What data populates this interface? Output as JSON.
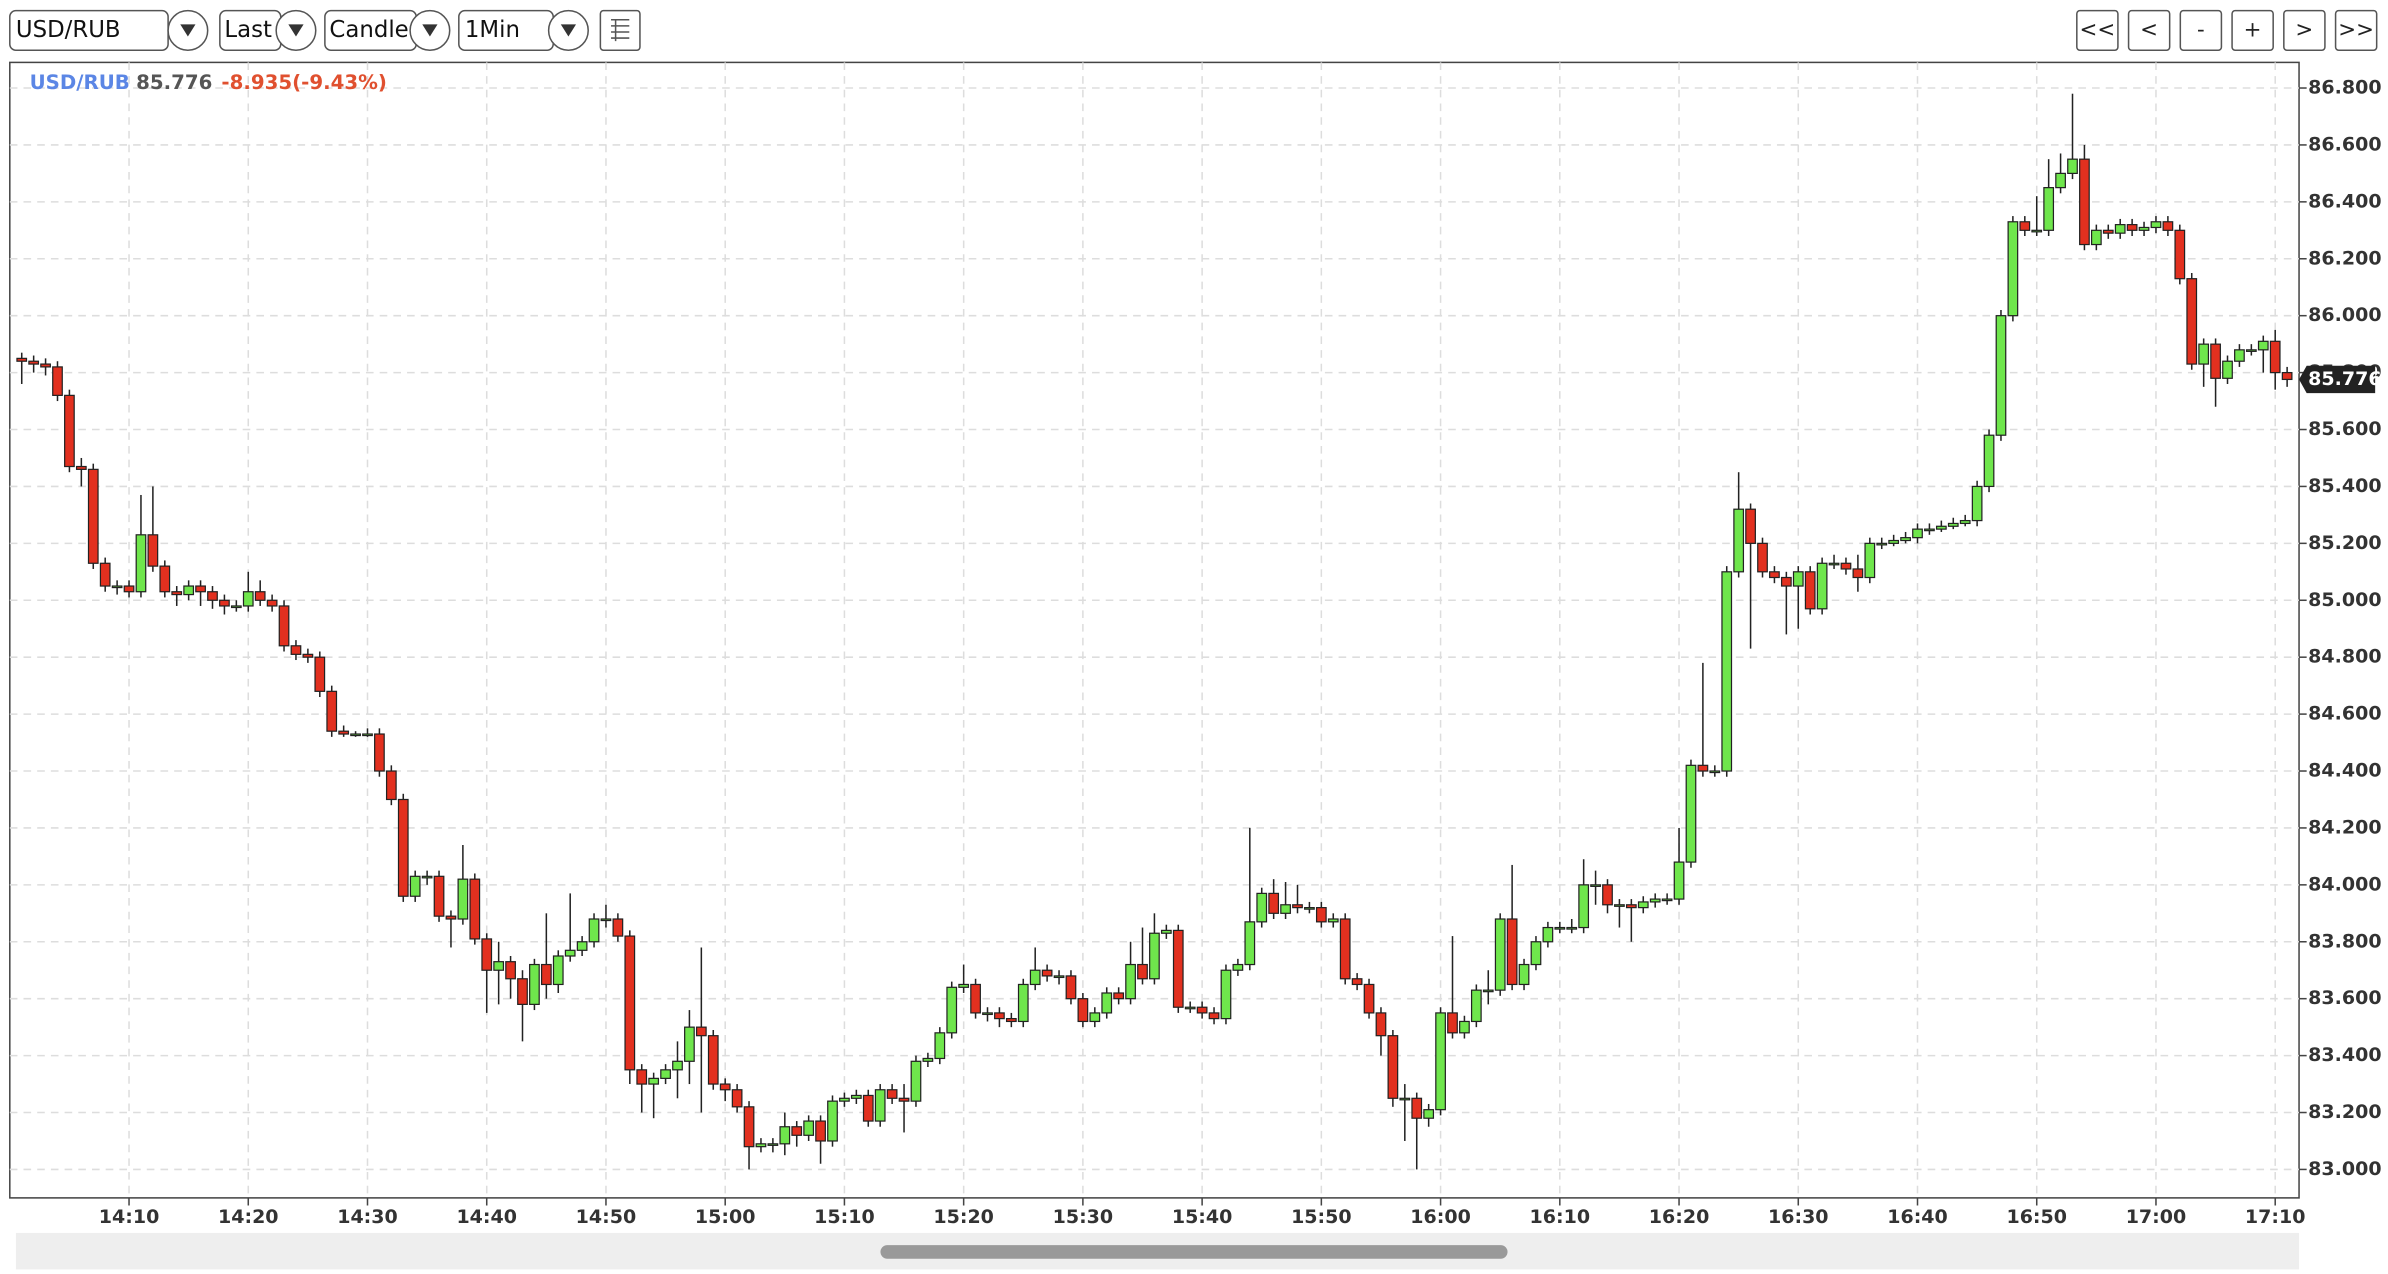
{
  "toolbar": {
    "symbol": "USD/RUB",
    "price_type": "Last",
    "chart_type": "Candle",
    "interval": "1Min",
    "nav": [
      "<<",
      "<",
      "-",
      "+",
      ">",
      ">>"
    ]
  },
  "chart_data": {
    "type": "candlestick",
    "header_change": "-8.935(-9.43%)",
    "up_color": "#6fe64c",
    "down_color": "#e2301f",
    "grid": true,
    "xlim": [
      "14:00",
      "17:12"
    ],
    "ylim": [
      82.9,
      86.89
    ],
    "xticks": [
      "14:10",
      "14:20",
      "14:30",
      "14:40",
      "14:50",
      "15:00",
      "15:10",
      "15:20",
      "15:30",
      "15:40",
      "15:50",
      "16:00",
      "16:10",
      "16:20",
      "16:30",
      "16:40",
      "16:50",
      "17:00",
      "17:10"
    ],
    "yticks": [
      {
        "value": 83,
        "label": "83.000"
      },
      {
        "value": 83.2,
        "label": "83.200"
      },
      {
        "value": 83.4,
        "label": "83.400"
      },
      {
        "value": 83.6,
        "label": "83.600"
      },
      {
        "value": 83.8,
        "label": "83.800"
      },
      {
        "value": 84,
        "label": "84.000"
      },
      {
        "value": 84.2,
        "label": "84.200"
      },
      {
        "value": 84.4,
        "label": "84.400"
      },
      {
        "value": 84.6,
        "label": "84.600"
      },
      {
        "value": 84.8,
        "label": "84.800"
      },
      {
        "value": 85,
        "label": "85.000"
      },
      {
        "value": 85.2,
        "label": "85.200"
      },
      {
        "value": 85.4,
        "label": "85.400"
      },
      {
        "value": 85.6,
        "label": "85.600"
      },
      {
        "value": 85.8,
        "label": "85.800"
      },
      {
        "value": 86,
        "label": "86.000"
      },
      {
        "value": 86.2,
        "label": "86.200"
      },
      {
        "value": 86.4,
        "label": "86.400"
      },
      {
        "value": 86.6,
        "label": "86.600"
      },
      {
        "value": 86.8,
        "label": "86.800"
      }
    ],
    "x": [
      "14:01",
      "14:02",
      "14:03",
      "14:04",
      "14:05",
      "14:06",
      "14:07",
      "14:08",
      "14:09",
      "14:10",
      "14:11",
      "14:12",
      "14:13",
      "14:14",
      "14:15",
      "14:16",
      "14:17",
      "14:18",
      "14:19",
      "14:20",
      "14:21",
      "14:22",
      "14:23",
      "14:24",
      "14:25",
      "14:26",
      "14:27",
      "14:28",
      "14:29",
      "14:30",
      "14:31",
      "14:32",
      "14:33",
      "14:34",
      "14:35",
      "14:36",
      "14:37",
      "14:38",
      "14:39",
      "14:40",
      "14:41",
      "14:42",
      "14:43",
      "14:44",
      "14:45",
      "14:46",
      "14:47",
      "14:48",
      "14:49",
      "14:50",
      "14:51",
      "14:52",
      "14:53",
      "14:54",
      "14:55",
      "14:56",
      "14:57",
      "14:58",
      "14:59",
      "15:00",
      "15:01",
      "15:02",
      "15:03",
      "15:04",
      "15:05",
      "15:06",
      "15:07",
      "15:08",
      "15:09",
      "15:10",
      "15:11",
      "15:12",
      "15:13",
      "15:14",
      "15:15",
      "15:16",
      "15:17",
      "15:18",
      "15:19",
      "15:20",
      "15:21",
      "15:22",
      "15:23",
      "15:24",
      "15:25",
      "15:26",
      "15:27",
      "15:28",
      "15:29",
      "15:30",
      "15:31",
      "15:32",
      "15:33",
      "15:34",
      "15:35",
      "15:36",
      "15:37",
      "15:38",
      "15:39",
      "15:40",
      "15:41",
      "15:42",
      "15:43",
      "15:44",
      "15:45",
      "15:46",
      "15:47",
      "15:48",
      "15:49",
      "15:50",
      "15:51",
      "15:52",
      "15:53",
      "15:54",
      "15:55",
      "15:56",
      "15:57",
      "15:58",
      "15:59",
      "16:00",
      "16:01",
      "16:02",
      "16:03",
      "16:04",
      "16:05",
      "16:06",
      "16:07",
      "16:08",
      "16:09",
      "16:10",
      "16:11",
      "16:12",
      "16:13",
      "16:14",
      "16:15",
      "16:16",
      "16:17",
      "16:18",
      "16:19",
      "16:20",
      "16:21",
      "16:22",
      "16:23",
      "16:24",
      "16:25",
      "16:26",
      "16:27",
      "16:28",
      "16:29",
      "16:30",
      "16:31",
      "16:32",
      "16:33",
      "16:34",
      "16:35",
      "16:36",
      "16:37",
      "16:38",
      "16:39",
      "16:40",
      "16:41",
      "16:42",
      "16:43",
      "16:44",
      "16:45",
      "16:46",
      "16:47",
      "16:48",
      "16:49",
      "16:50",
      "16:51",
      "16:52",
      "16:53",
      "16:54",
      "16:55",
      "16:56",
      "16:57",
      "16:58",
      "16:59",
      "17:00",
      "17:01",
      "17:02",
      "17:03",
      "17:04",
      "17:05",
      "17:06",
      "17:07",
      "17:08",
      "17:09",
      "17:10",
      "17:11"
    ],
    "open": [
      85.85,
      85.84,
      85.83,
      85.82,
      85.72,
      85.47,
      85.46,
      85.13,
      85.05,
      85.05,
      85.03,
      85.23,
      85.12,
      85.03,
      85.02,
      85.05,
      85.03,
      85.0,
      84.98,
      84.98,
      85.03,
      85.0,
      84.98,
      84.84,
      84.81,
      84.8,
      84.68,
      84.54,
      84.53,
      84.53,
      84.53,
      84.4,
      84.3,
      83.96,
      84.03,
      84.03,
      83.89,
      83.88,
      84.02,
      83.81,
      83.7,
      83.73,
      83.67,
      83.58,
      83.72,
      83.65,
      83.75,
      83.77,
      83.8,
      83.88,
      83.88,
      83.82,
      83.35,
      83.3,
      83.32,
      83.35,
      83.38,
      83.5,
      83.47,
      83.3,
      83.28,
      83.22,
      83.08,
      83.09,
      83.09,
      83.15,
      83.12,
      83.17,
      83.1,
      83.24,
      83.25,
      83.26,
      83.17,
      83.28,
      83.25,
      83.24,
      83.38,
      83.39,
      83.48,
      83.64,
      83.65,
      83.55,
      83.55,
      83.53,
      83.52,
      83.65,
      83.7,
      83.68,
      83.68,
      83.6,
      83.52,
      83.55,
      83.62,
      83.6,
      83.72,
      83.67,
      83.83,
      83.84,
      83.57,
      83.57,
      83.55,
      83.53,
      83.7,
      83.72,
      83.87,
      83.97,
      83.9,
      83.93,
      83.92,
      83.92,
      83.87,
      83.88,
      83.67,
      83.65,
      83.55,
      83.47,
      83.25,
      83.25,
      83.18,
      83.21,
      83.55,
      83.48,
      83.52,
      83.63,
      83.63,
      83.88,
      83.65,
      83.72,
      83.8,
      83.85,
      83.85,
      83.85,
      84.0,
      84.0,
      83.93,
      83.93,
      83.92,
      83.94,
      83.95,
      83.95,
      84.08,
      84.42,
      84.4,
      84.4,
      85.1,
      85.32,
      85.2,
      85.1,
      85.08,
      85.05,
      85.1,
      84.97,
      85.13,
      85.13,
      85.11,
      85.08,
      85.2,
      85.2,
      85.21,
      85.22,
      85.25,
      85.25,
      85.26,
      85.27,
      85.28,
      85.4,
      85.58,
      86.0,
      86.33,
      86.3,
      86.3,
      86.45,
      86.5,
      86.55,
      86.25,
      86.3,
      86.29,
      86.32,
      86.3,
      86.31,
      86.33,
      86.3,
      86.13,
      85.83,
      85.9,
      85.78,
      85.84,
      85.88,
      85.88,
      85.91,
      85.8
    ],
    "high": [
      85.87,
      85.86,
      85.85,
      85.84,
      85.74,
      85.5,
      85.48,
      85.15,
      85.07,
      85.07,
      85.37,
      85.4,
      85.14,
      85.05,
      85.07,
      85.07,
      85.05,
      85.02,
      85.0,
      85.1,
      85.07,
      85.02,
      85.0,
      84.86,
      84.83,
      84.82,
      84.7,
      84.56,
      84.54,
      84.55,
      84.55,
      84.42,
      84.32,
      84.05,
      84.05,
      84.05,
      83.91,
      84.14,
      84.04,
      83.83,
      83.8,
      83.75,
      83.7,
      83.74,
      83.9,
      83.77,
      83.97,
      83.82,
      83.9,
      83.93,
      83.9,
      83.84,
      83.37,
      83.34,
      83.37,
      83.45,
      83.56,
      83.78,
      83.49,
      83.32,
      83.3,
      83.24,
      83.11,
      83.11,
      83.2,
      83.17,
      83.19,
      83.19,
      83.26,
      83.27,
      83.28,
      83.28,
      83.3,
      83.3,
      83.3,
      83.4,
      83.41,
      83.5,
      83.66,
      83.72,
      83.67,
      83.57,
      83.57,
      83.55,
      83.67,
      83.78,
      83.72,
      83.7,
      83.7,
      83.62,
      83.57,
      83.64,
      83.64,
      83.8,
      83.85,
      83.9,
      83.86,
      83.86,
      83.59,
      83.59,
      83.57,
      83.72,
      83.74,
      84.2,
      83.99,
      84.02,
      84.01,
      84.0,
      83.94,
      83.94,
      83.9,
      83.9,
      83.69,
      83.67,
      83.57,
      83.49,
      83.3,
      83.27,
      83.23,
      83.57,
      83.82,
      83.54,
      83.65,
      83.7,
      83.9,
      84.07,
      83.74,
      83.82,
      83.87,
      83.87,
      83.88,
      84.09,
      84.05,
      84.02,
      83.95,
      83.95,
      83.96,
      83.97,
      83.97,
      84.2,
      84.44,
      84.78,
      84.42,
      85.12,
      85.45,
      85.34,
      85.22,
      85.12,
      85.1,
      85.12,
      85.12,
      85.15,
      85.16,
      85.15,
      85.16,
      85.22,
      85.22,
      85.23,
      85.24,
      85.27,
      85.27,
      85.28,
      85.29,
      85.3,
      85.42,
      85.6,
      86.02,
      86.35,
      86.35,
      86.42,
      86.55,
      86.57,
      86.78,
      86.6,
      86.32,
      86.32,
      86.34,
      86.34,
      86.33,
      86.35,
      86.35,
      86.32,
      86.15,
      85.92,
      85.92,
      85.86,
      85.9,
      85.9,
      85.93,
      85.95,
      85.82
    ],
    "low": [
      85.76,
      85.8,
      85.79,
      85.7,
      85.45,
      85.4,
      85.11,
      85.03,
      85.02,
      85.01,
      85.01,
      85.1,
      85.01,
      84.98,
      85.0,
      84.98,
      84.97,
      84.95,
      84.96,
      84.96,
      84.98,
      84.96,
      84.82,
      84.79,
      84.78,
      84.66,
      84.52,
      84.52,
      84.52,
      84.52,
      84.38,
      84.28,
      83.94,
      83.94,
      84.0,
      83.87,
      83.78,
      83.86,
      83.79,
      83.55,
      83.58,
      83.6,
      83.45,
      83.56,
      83.6,
      83.62,
      83.73,
      83.75,
      83.78,
      83.85,
      83.8,
      83.3,
      83.2,
      83.18,
      83.3,
      83.25,
      83.3,
      83.2,
      83.28,
      83.24,
      83.2,
      83.0,
      83.06,
      83.06,
      83.05,
      83.08,
      83.1,
      83.02,
      83.08,
      83.22,
      83.23,
      83.15,
      83.15,
      83.23,
      83.13,
      83.22,
      83.36,
      83.37,
      83.46,
      83.62,
      83.53,
      83.52,
      83.5,
      83.5,
      83.5,
      83.63,
      83.66,
      83.65,
      83.58,
      83.5,
      83.5,
      83.53,
      83.58,
      83.58,
      83.65,
      83.65,
      83.81,
      83.55,
      83.55,
      83.53,
      83.51,
      83.51,
      83.68,
      83.7,
      83.85,
      83.88,
      83.88,
      83.9,
      83.9,
      83.85,
      83.85,
      83.65,
      83.63,
      83.53,
      83.4,
      83.22,
      83.1,
      83.0,
      83.15,
      83.19,
      83.46,
      83.46,
      83.5,
      83.58,
      83.61,
      83.63,
      83.63,
      83.7,
      83.78,
      83.83,
      83.83,
      83.83,
      83.93,
      83.9,
      83.85,
      83.8,
      83.9,
      83.92,
      83.93,
      83.93,
      84.06,
      84.38,
      84.38,
      84.38,
      85.08,
      84.83,
      85.08,
      85.06,
      84.88,
      84.9,
      84.95,
      84.95,
      85.11,
      85.09,
      85.03,
      85.06,
      85.18,
      85.19,
      85.2,
      85.2,
      85.23,
      85.24,
      85.25,
      85.26,
      85.26,
      85.38,
      85.56,
      85.98,
      86.28,
      86.28,
      86.28,
      86.43,
      86.48,
      86.23,
      86.23,
      86.27,
      86.27,
      86.28,
      86.28,
      86.29,
      86.28,
      86.11,
      85.81,
      85.75,
      85.68,
      85.76,
      85.82,
      85.86,
      85.8,
      85.74,
      85.75
    ],
    "close": [
      85.84,
      85.83,
      85.82,
      85.72,
      85.47,
      85.46,
      85.13,
      85.05,
      85.05,
      85.03,
      85.23,
      85.12,
      85.03,
      85.02,
      85.05,
      85.03,
      85.0,
      84.98,
      84.98,
      85.03,
      85.0,
      84.98,
      84.84,
      84.81,
      84.8,
      84.68,
      84.54,
      84.53,
      84.53,
      84.53,
      84.4,
      84.3,
      83.96,
      84.03,
      84.03,
      83.89,
      83.88,
      84.02,
      83.81,
      83.7,
      83.73,
      83.67,
      83.58,
      83.72,
      83.65,
      83.75,
      83.77,
      83.8,
      83.88,
      83.88,
      83.82,
      83.35,
      83.3,
      83.32,
      83.35,
      83.38,
      83.5,
      83.47,
      83.3,
      83.28,
      83.22,
      83.08,
      83.09,
      83.09,
      83.15,
      83.12,
      83.17,
      83.1,
      83.24,
      83.25,
      83.26,
      83.17,
      83.28,
      83.25,
      83.24,
      83.38,
      83.39,
      83.48,
      83.64,
      83.65,
      83.55,
      83.55,
      83.53,
      83.52,
      83.65,
      83.7,
      83.68,
      83.68,
      83.6,
      83.52,
      83.55,
      83.62,
      83.6,
      83.72,
      83.67,
      83.83,
      83.84,
      83.57,
      83.57,
      83.55,
      83.53,
      83.7,
      83.72,
      83.87,
      83.97,
      83.9,
      83.93,
      83.92,
      83.92,
      83.87,
      83.88,
      83.67,
      83.65,
      83.55,
      83.47,
      83.25,
      83.25,
      83.18,
      83.21,
      83.55,
      83.48,
      83.52,
      83.63,
      83.63,
      83.88,
      83.65,
      83.72,
      83.8,
      83.85,
      83.85,
      83.85,
      84.0,
      84.0,
      83.93,
      83.93,
      83.92,
      83.94,
      83.95,
      83.95,
      84.08,
      84.42,
      84.4,
      84.4,
      85.1,
      85.32,
      85.2,
      85.1,
      85.08,
      85.05,
      85.1,
      84.97,
      85.13,
      85.13,
      85.11,
      85.08,
      85.2,
      85.2,
      85.21,
      85.22,
      85.25,
      85.25,
      85.26,
      85.27,
      85.28,
      85.4,
      85.58,
      86.0,
      86.33,
      86.3,
      86.3,
      86.45,
      86.5,
      86.55,
      86.25,
      86.3,
      86.29,
      86.32,
      86.3,
      86.31,
      86.33,
      86.3,
      86.13,
      85.83,
      85.9,
      85.78,
      85.84,
      85.88,
      85.88,
      85.91,
      85.8,
      85.776
    ]
  }
}
